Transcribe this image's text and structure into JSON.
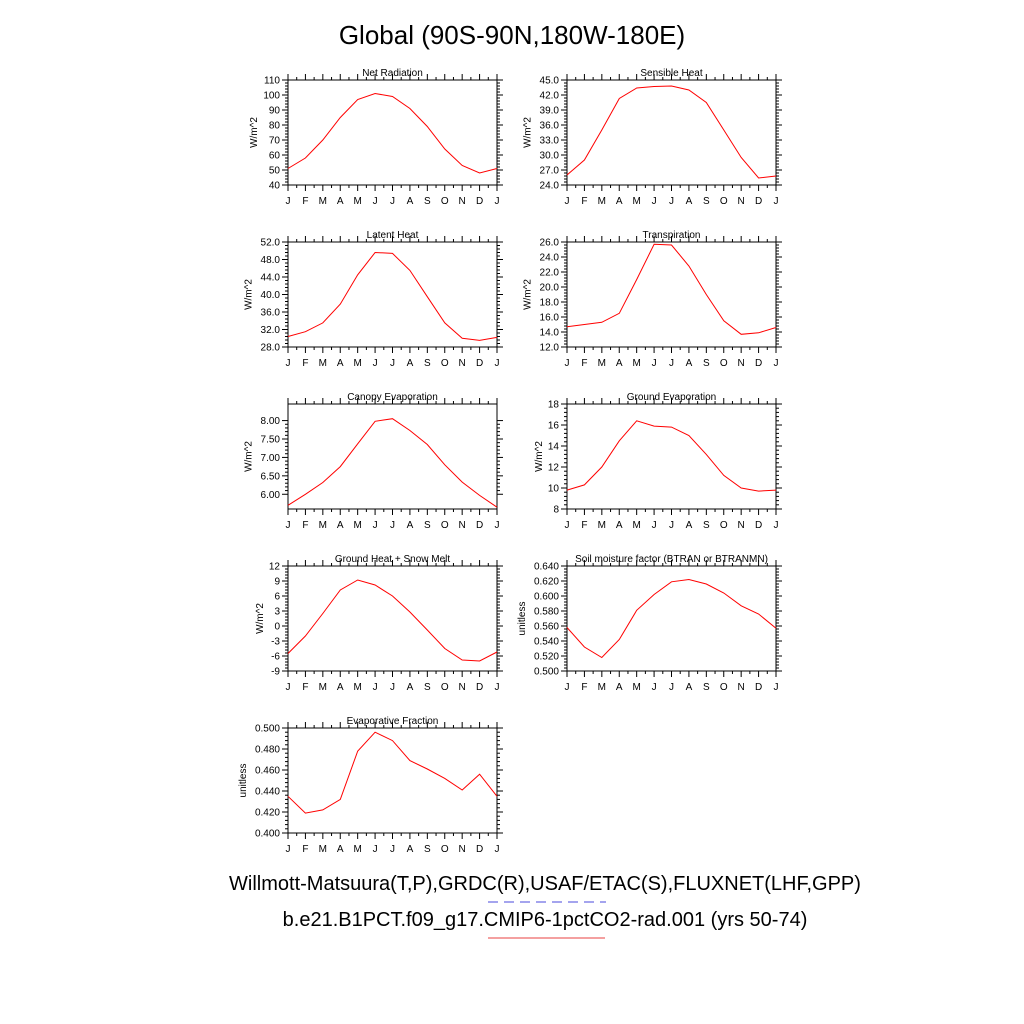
{
  "figure": {
    "title": "Global (90S-90N,180W-180E)",
    "legend": [
      {
        "label": "Willmott-Matsuura(T,P),GRDC(R),USAF/ETAC(S),FLUXNET(LHF,GPP)",
        "color": "#4a4adc",
        "style": "dashed"
      },
      {
        "label": "b.e21.B1PCT.f09_g17.CMIP6-1pctCO2-rad.001 (yrs 50-74)",
        "color": "#e84040",
        "style": "solid"
      }
    ],
    "line_color": "#ff0000"
  },
  "chart_data": [
    {
      "type": "line",
      "title": "Net Radiation",
      "ylabel": "W/m^2",
      "categories": [
        "J",
        "F",
        "M",
        "A",
        "M",
        "J",
        "J",
        "A",
        "S",
        "O",
        "N",
        "D",
        "J"
      ],
      "yticks": [
        "40",
        "50",
        "60",
        "70",
        "80",
        "90",
        "100",
        "110"
      ],
      "ylim": [
        40,
        110
      ],
      "values": [
        51,
        58,
        70,
        85,
        97,
        101,
        99,
        91,
        79,
        64,
        53,
        48,
        51
      ]
    },
    {
      "type": "line",
      "title": "Sensible Heat",
      "ylabel": "W/m^2",
      "categories": [
        "J",
        "F",
        "M",
        "A",
        "M",
        "J",
        "J",
        "A",
        "S",
        "O",
        "N",
        "D",
        "J"
      ],
      "yticks": [
        "24.0",
        "27.0",
        "30.0",
        "33.0",
        "36.0",
        "39.0",
        "42.0",
        "45.0"
      ],
      "ylim": [
        24,
        45
      ],
      "values": [
        26.0,
        29.0,
        35.0,
        41.3,
        43.4,
        43.7,
        43.8,
        43.0,
        40.5,
        35.0,
        29.5,
        25.4,
        25.8
      ]
    },
    {
      "type": "line",
      "title": "Latent Heat",
      "ylabel": "W/m^2",
      "categories": [
        "J",
        "F",
        "M",
        "A",
        "M",
        "J",
        "J",
        "A",
        "S",
        "O",
        "N",
        "D",
        "J"
      ],
      "yticks": [
        "28.0",
        "32.0",
        "36.0",
        "40.0",
        "44.0",
        "48.0",
        "52.0"
      ],
      "ylim": [
        28,
        52
      ],
      "values": [
        30.4,
        31.5,
        33.5,
        37.8,
        44.5,
        49.6,
        49.4,
        45.5,
        39.5,
        33.5,
        30.0,
        29.5,
        30.2
      ]
    },
    {
      "type": "line",
      "title": "Transpiration",
      "ylabel": "W/m^2",
      "categories": [
        "J",
        "F",
        "M",
        "A",
        "M",
        "J",
        "J",
        "A",
        "S",
        "O",
        "N",
        "D",
        "J"
      ],
      "yticks": [
        "12.0",
        "14.0",
        "16.0",
        "18.0",
        "20.0",
        "22.0",
        "24.0",
        "26.0"
      ],
      "ylim": [
        12,
        26
      ],
      "values": [
        14.7,
        15.0,
        15.3,
        16.5,
        21.0,
        25.7,
        25.6,
        22.8,
        19.0,
        15.5,
        13.7,
        13.9,
        14.6
      ]
    },
    {
      "type": "line",
      "title": "Canopy Evaporation",
      "ylabel": "W/m^2",
      "categories": [
        "J",
        "F",
        "M",
        "A",
        "M",
        "J",
        "J",
        "A",
        "S",
        "O",
        "N",
        "D",
        "J"
      ],
      "yticks": [
        "6.00",
        "6.50",
        "7.00",
        "7.50",
        "8.00"
      ],
      "ylim": [
        5.6,
        8.45
      ],
      "values": [
        5.7,
        6.0,
        6.32,
        6.75,
        7.37,
        7.98,
        8.05,
        7.73,
        7.35,
        6.8,
        6.33,
        5.97,
        5.65
      ]
    },
    {
      "type": "line",
      "title": "Ground Evaporation",
      "ylabel": "W/m^2",
      "categories": [
        "J",
        "F",
        "M",
        "A",
        "M",
        "J",
        "J",
        "A",
        "S",
        "O",
        "N",
        "D",
        "J"
      ],
      "yticks": [
        "8",
        "10",
        "12",
        "14",
        "16",
        "18"
      ],
      "ylim": [
        8,
        18
      ],
      "values": [
        9.8,
        10.3,
        12.0,
        14.5,
        16.4,
        15.9,
        15.8,
        15.0,
        13.2,
        11.2,
        10.0,
        9.7,
        9.8
      ]
    },
    {
      "type": "line",
      "title": "Ground Heat + Snow Melt",
      "ylabel": "W/m^2",
      "categories": [
        "J",
        "F",
        "M",
        "A",
        "M",
        "J",
        "J",
        "A",
        "S",
        "O",
        "N",
        "D",
        "J"
      ],
      "yticks": [
        "-9",
        "-6",
        "-3",
        "0",
        "3",
        "6",
        "9",
        "12"
      ],
      "ylim": [
        -9,
        12
      ],
      "values": [
        -5.5,
        -2.0,
        2.5,
        7.2,
        9.2,
        8.2,
        6.0,
        2.8,
        -0.8,
        -4.5,
        -6.8,
        -7.0,
        -5.2
      ]
    },
    {
      "type": "line",
      "title": "Soil moisture factor (BTRAN or BTRANMN)",
      "ylabel": "unitless",
      "categories": [
        "J",
        "F",
        "M",
        "A",
        "M",
        "J",
        "J",
        "A",
        "S",
        "O",
        "N",
        "D",
        "J"
      ],
      "yticks": [
        "0.500",
        "0.520",
        "0.540",
        "0.560",
        "0.580",
        "0.600",
        "0.620",
        "0.640"
      ],
      "ylim": [
        0.5,
        0.64
      ],
      "values": [
        0.558,
        0.532,
        0.518,
        0.542,
        0.581,
        0.602,
        0.619,
        0.622,
        0.616,
        0.604,
        0.587,
        0.576,
        0.557
      ]
    },
    {
      "type": "line",
      "title": "Evaporative Fraction",
      "ylabel": "unitless",
      "categories": [
        "J",
        "F",
        "M",
        "A",
        "M",
        "J",
        "J",
        "A",
        "S",
        "O",
        "N",
        "D",
        "J"
      ],
      "yticks": [
        "0.400",
        "0.420",
        "0.440",
        "0.460",
        "0.480",
        "0.500"
      ],
      "ylim": [
        0.4,
        0.5
      ],
      "values": [
        0.435,
        0.419,
        0.422,
        0.432,
        0.478,
        0.496,
        0.488,
        0.469,
        0.461,
        0.452,
        0.441,
        0.456,
        0.435
      ]
    }
  ]
}
